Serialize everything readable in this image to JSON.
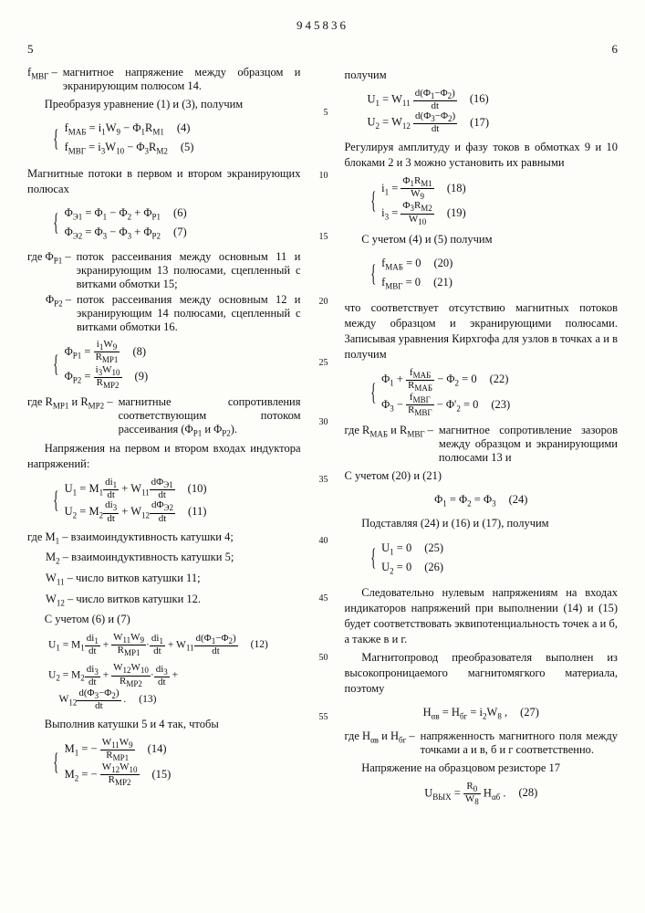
{
  "doc_number": "945836",
  "left_page_num": "5",
  "right_page_num": "6",
  "left": {
    "def_fmvr": "f",
    "def_fmvr_sub": "МВГ",
    "def_fmvr_txt": "магнитное напряжение между образцом и экранирующим полюсом 14.",
    "p1": "Преобразуя уравнение (1) и (3), получим",
    "eq4": "f<sub>МАБ</sub> = i<sub>1</sub>W<sub>9</sub> − Φ<sub>1</sub>R<sub>М1</sub>",
    "eq4n": "(4)",
    "eq5": "f<sub>МВГ</sub> = i<sub>3</sub>W<sub>10</sub> − Φ<sub>3</sub>R<sub>М2</sub>",
    "eq5n": "(5)",
    "p2": "Магнитные потоки в первом и втором экранирующих полюсах",
    "eq6": "Φ<sub>Э1</sub> = Φ<sub>1</sub> − Φ<sub>2</sub> + Φ<sub>P1</sub>",
    "eq6n": "(6)",
    "eq7": "Φ<sub>Э2</sub> = Φ<sub>3</sub> − Φ<sub>3</sub> + Φ<sub>P2</sub>",
    "eq7n": "(7)",
    "def_phip1_k": "где Φ<sub>P1</sub> –",
    "def_phip1": "поток рассеивания между основным 11 и экранирующим 13 полюсами, сцепленный с витками обмотки 15;",
    "def_phip2_k": "Φ<sub>P2</sub> –",
    "def_phip2": "поток рассеивания между основным 12 и экранирующим 14 полюсами, сцепленный с витками обмотки 16.",
    "eq8_num": "i<sub>1</sub>W<sub>9</sub>",
    "eq8_den": "R<sub>МР1</sub>",
    "eq8n": "(8)",
    "eq9_num": "i<sub>3</sub>W<sub>10</sub>",
    "eq9_den": "R<sub>МР2</sub>",
    "eq9n": "(9)",
    "def_rmp": "где R<sub>МР1</sub> и R<sub>МР2</sub> –",
    "def_rmp_txt": "магнитные сопротивления соответствующим потоком рассеивания (Φ<sub>P1</sub> и Φ<sub>P2</sub>).",
    "p3": "Напряжения на первом и втором входах индуктора напряжений:",
    "eq10_a": "di<sub>1</sub>",
    "eq10_b": "dΦ<sub>Э1</sub>",
    "eq10n": "(10)",
    "eq11_a": "di<sub>3</sub>",
    "eq11_b": "dΦ<sub>Э2</sub>",
    "eq11n": "(11)",
    "def_m1": "где M<sub>1</sub> – взаимоиндуктивность катушки 4;",
    "def_m2": "M<sub>2</sub> – взаимоиндуктивность катушки 5;",
    "def_w11": "W<sub>11</sub> – число витков катушки 11;",
    "def_w12": "W<sub>12</sub> – число витков катушки 12.",
    "p4": "С учетом (6) и (7)",
    "eq12n": "(12)",
    "eq13n": "(13)",
    "p5": "Выполнив катушки 5 и 4 так, чтобы",
    "eq14_num": "W<sub>11</sub>W<sub>9</sub>",
    "eq14_den": "R<sub>МР1</sub>",
    "eq14n": "(14)",
    "eq15_num": "W<sub>12</sub>W<sub>10</sub>",
    "eq15_den": "R<sub>МР2</sub>",
    "eq15n": "(15)"
  },
  "right": {
    "p0": "получим",
    "eq16_num": "d(Φ<sub>1</sub>−Φ<sub>2</sub>)",
    "eq16n": "(16)",
    "eq17_num": "d(Φ<sub>3</sub>−Φ<sub>2</sub>)",
    "eq17n": "(17)",
    "p1": "Регулируя амплитуду и фазу токов в обмотках 9 и 10 блоками 2 и 3 можно установить их равными",
    "eq18_num": "Φ<sub>1</sub>R<sub>М1</sub>",
    "eq18_den": "W<sub>9</sub>",
    "eq18n": "(18)",
    "eq19_num": "Φ<sub>3</sub>R<sub>М2</sub>",
    "eq19_den": "W<sub>10</sub>",
    "eq19n": "(19)",
    "p2": "С учетом (4) и (5) получим",
    "eq20": "f<sub>МАБ</sub> = 0",
    "eq20n": "(20)",
    "eq21": "f<sub>МВГ</sub> = 0",
    "eq21n": "(21)",
    "p3": "что соответствует отсутствию магнитных потоков между образцом и экранирующими полюсами. Записывая уравнения Кирхгофа для узлов в точках а и в получим",
    "eq22_num": "f<sub>МАБ</sub>",
    "eq22_den": "R<sub>МАБ</sub>",
    "eq22n": "(22)",
    "eq23_num": "f<sub>МВГ</sub>",
    "eq23_den": "R<sub>МВГ</sub>",
    "eq23n": "(23)",
    "def_rmab": "где R<sub>МАБ</sub> и R<sub>МВГ</sub> –",
    "def_rmab_txt": "магнитное сопротивление зазоров между образцом и экранирующими полюсами 13 и",
    "p4": "С учетом (20) и (21)",
    "eq24": "Φ<sub>1</sub> = Φ<sub>2</sub> = Φ<sub>3</sub>",
    "eq24n": "(24)",
    "p5": "Подставляя (24) и (16) и (17), получим",
    "eq25": "U<sub>1</sub> = 0",
    "eq25n": "(25)",
    "eq26": "U<sub>2</sub> = 0",
    "eq26n": "(26)",
    "p6": "Следовательно нулевым напряжениям на входах индикаторов напряжений при выполнении (14) и (15) будет соответствовать эквипотенциальность точек а и б, а также в и г.",
    "p7": "Магнитопровод преобразователя выполнен из высокопроницаемого магнитомягкого материала, поэтому",
    "eq27": "H<sub>αв</sub> = H<sub>бг</sub> = i<sub>2</sub>W<sub>8</sub> ,",
    "eq27n": "(27)",
    "def_h": "где H<sub>αв</sub> и H<sub>бг</sub> –",
    "def_h_txt": "напряженность магнитного поля между точками а и в, б и г соответственно.",
    "p8": "Напряжение на образцовом резисторе 17",
    "eq28_num": "R<sub>0</sub>",
    "eq28_den": "W<sub>8</sub>",
    "eq28n": "(28)"
  },
  "ln": {
    "l5": "5",
    "l10": "10",
    "l15": "15",
    "l20": "20",
    "l25": "25",
    "l30": "30",
    "l35": "35",
    "l40": "40",
    "l45": "45",
    "l50": "50",
    "l55": "55"
  }
}
